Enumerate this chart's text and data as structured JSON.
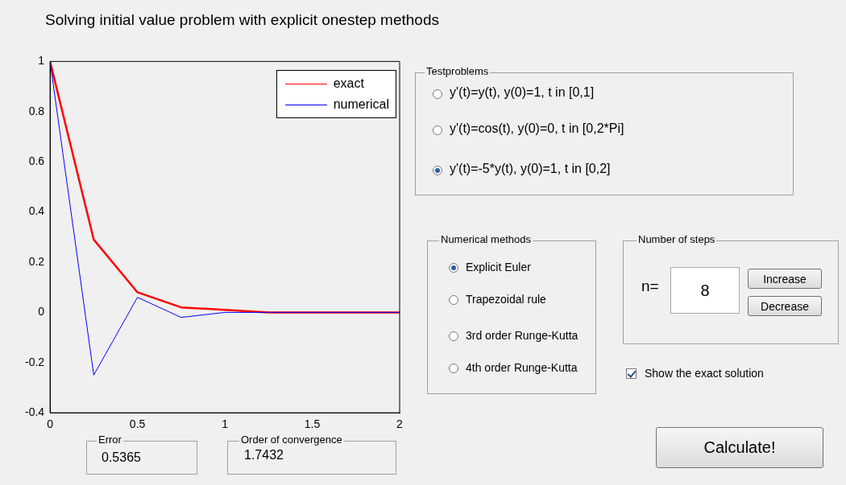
{
  "chart_data": [
    {
      "type": "line",
      "title": "Solving initial value problem with explicit onestep methods",
      "x": [
        0,
        0.25,
        0.5,
        0.75,
        1,
        1.25,
        1.5,
        1.75,
        2
      ],
      "series": [
        {
          "name": "exact",
          "color": "#ff0000",
          "values": [
            1,
            0.29,
            0.08,
            0.02,
            0.01,
            0,
            0,
            0,
            0
          ]
        },
        {
          "name": "numerical",
          "color": "#0000ff",
          "values": [
            1,
            -0.25,
            0.06,
            -0.02,
            0,
            0,
            0,
            0,
            0
          ]
        }
      ],
      "xlim": [
        0,
        2
      ],
      "xticks": [
        0,
        0.5,
        1,
        1.5,
        2
      ],
      "ylim": [
        -0.4,
        1
      ],
      "yticks": [
        -0.4,
        -0.2,
        0,
        0.2,
        0.4,
        0.6,
        0.8,
        1
      ],
      "legend": "top right",
      "grid": false
    },
    {
      "type": "other",
      "annotations": [
        "Testproblems",
        "y'(t)=y(t), y(0)=1, t in [0,1]",
        "y'(t)=cos(t), y(0)=0, t in [0,2*Pi]",
        "y'(t)=-5*y(t), y(0)=1, t in [0,2]",
        "Numerical methods",
        "Explicit Euler",
        "Trapezoidal rule",
        "3rd order Runge-Kutta",
        "4th order Runge-Kutta",
        "Number of steps",
        "n=",
        "8",
        "Increase",
        "Decrease",
        "Show the exact solution",
        "Calculate!",
        "Error",
        "0.5365",
        "Order of convergence",
        "1.7432"
      ]
    }
  ]
}
